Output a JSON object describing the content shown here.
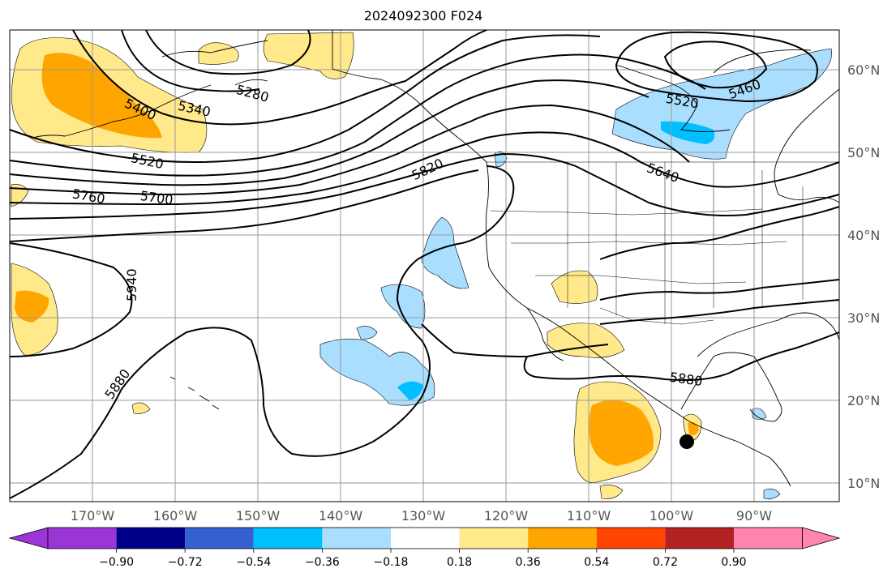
{
  "title": "2024092300 F024",
  "lat_labels": [
    "60°N",
    "50°N",
    "40°N",
    "30°N",
    "20°N",
    "10°N"
  ],
  "lon_labels": [
    "170°W",
    "160°W",
    "150°W",
    "140°W",
    "130°W",
    "120°W",
    "110°W",
    "100°W",
    "90°W"
  ],
  "colorbar": {
    "colors": [
      "#9b35d6",
      "#00008b",
      "#3460d0",
      "#00bfff",
      "#aadeff",
      "#ffffff",
      "#ffe98a",
      "#ffa500",
      "#ff4500",
      "#b22222",
      "#ff85b0"
    ],
    "tick_labels": [
      "−0.90",
      "−0.72",
      "−0.54",
      "−0.36",
      "−0.18",
      "0.18",
      "0.36",
      "0.54",
      "0.72",
      "0.90"
    ]
  },
  "contour_labels": [
    "5280",
    "5340",
    "5400",
    "5520",
    "5760",
    "5700",
    "5940",
    "5880",
    "5820",
    "5460",
    "5520",
    "5640",
    "5880"
  ],
  "accent": {
    "contour_color": "#000000",
    "grid_color": "#999999",
    "label_color": "#555555"
  }
}
